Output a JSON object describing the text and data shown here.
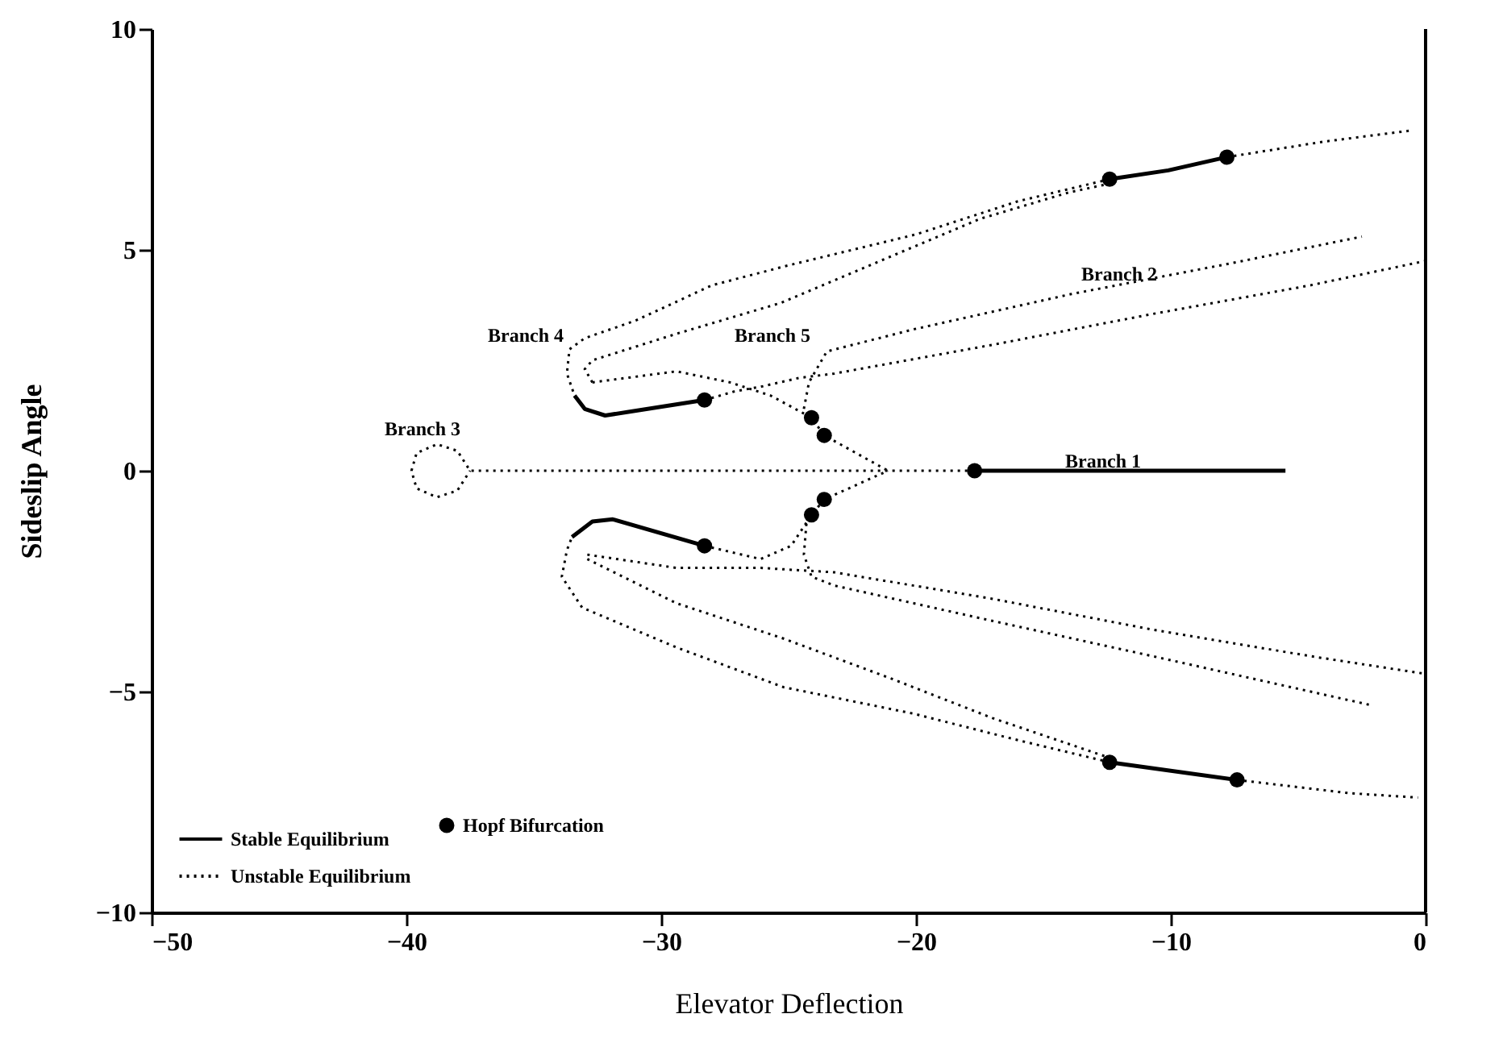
{
  "chart_data": {
    "type": "line",
    "xlabel": "Elevator Deflection",
    "ylabel": "Sideslip Angle",
    "xlim": [
      -50,
      0
    ],
    "xticks": [
      -50,
      -40,
      -30,
      -20,
      -10,
      0
    ],
    "ylim": [
      -10,
      10
    ],
    "yticks": [
      -10,
      -5,
      0,
      5,
      10
    ],
    "grid": false,
    "legend": "bottom left",
    "series": [
      {
        "name": "Stable Equilibrium",
        "line_style": "solid",
        "color": "#000000",
        "x": [
          -17.7,
          -5.5
        ],
        "values": [
          0,
          0
        ]
      },
      {
        "name": "Unstable Equilibrium",
        "line_style": "dotted",
        "color": "#000000",
        "x": [
          -17.7,
          -37.5,
          -38.0,
          -38.8,
          -39.6,
          -39.8,
          -39.6,
          -38.8,
          -38.0,
          -37.5
        ],
        "values": [
          0,
          0,
          0.45,
          0.6,
          0.4,
          0,
          -0.4,
          -0.6,
          -0.45,
          0
        ]
      },
      {
        "name": "Hopf Bifurcation",
        "type": "scatter",
        "marker": "circle",
        "color": "#000000",
        "x": [
          -17.7,
          -12.4,
          -7.8,
          -28.3,
          -28.3,
          -12.4,
          -7.4,
          -24.1,
          -23.6,
          -24.1,
          -23.6
        ],
        "values": [
          0,
          6.6,
          7.1,
          1.6,
          -1.7,
          -6.6,
          -7.0,
          1.2,
          0.8,
          -1.0,
          -0.65
        ]
      },
      {
        "line_style": "solid",
        "color": "#000000",
        "x": [
          -12.4,
          -10.1,
          -7.8
        ],
        "values": [
          6.6,
          6.8,
          7.1
        ]
      },
      {
        "line_style": "solid",
        "color": "#000000",
        "x": [
          -33.4,
          -33.0,
          -32.2,
          -28.3
        ],
        "values": [
          1.7,
          1.4,
          1.25,
          1.6
        ]
      },
      {
        "line_style": "solid",
        "color": "#000000",
        "x": [
          -33.5,
          -32.7,
          -31.9,
          -28.3
        ],
        "values": [
          -1.5,
          -1.15,
          -1.1,
          -1.7
        ]
      },
      {
        "line_style": "solid",
        "color": "#000000",
        "x": [
          -12.4,
          -7.4
        ],
        "values": [
          -6.6,
          -7.0
        ]
      },
      {
        "line_style": "dotted",
        "color": "#000000",
        "x": [
          -7.8,
          -4,
          -0.6
        ],
        "values": [
          7.1,
          7.45,
          7.7
        ]
      },
      {
        "line_style": "dotted",
        "color": "#000000",
        "x": [
          -12.4,
          -16,
          -20,
          -25,
          -28,
          -31,
          -33,
          -33.6,
          -33.7,
          -33.4
        ],
        "values": [
          6.6,
          6.1,
          5.35,
          4.65,
          4.2,
          3.4,
          3.0,
          2.75,
          2.2,
          1.7
        ]
      },
      {
        "line_style": "dotted",
        "color": "#000000",
        "x": [
          -28.3,
          -27.1,
          -26.1,
          -24.6,
          -23.2,
          -17.0,
          -10.7,
          -4.5,
          0
        ],
        "values": [
          1.6,
          1.8,
          1.9,
          2.1,
          2.2,
          2.85,
          3.55,
          4.2,
          4.75
        ]
      },
      {
        "line_style": "dotted",
        "color": "#000000",
        "x": [
          -24.4,
          -24.2,
          -23.5,
          -20.1,
          -13.9,
          -7.6,
          -2.5
        ],
        "values": [
          1.4,
          2.0,
          2.7,
          3.2,
          4.0,
          4.7,
          5.3
        ]
      },
      {
        "line_style": "dotted",
        "color": "#000000",
        "x": [
          -32.7,
          -29.4,
          -27.3,
          -25.7,
          -24.1,
          -23.6,
          -21.1
        ],
        "values": [
          2.0,
          2.25,
          2.0,
          1.7,
          1.2,
          0.8,
          0
        ]
      },
      {
        "line_style": "dotted",
        "color": "#000000",
        "x": [
          -32.7,
          -33.0,
          -32.7,
          -29.4,
          -25.3,
          -21.2,
          -17.5,
          -14,
          -12.4
        ],
        "values": [
          2.0,
          2.3,
          2.5,
          3.1,
          3.8,
          4.8,
          5.7,
          6.3,
          6.5
        ]
      },
      {
        "line_style": "dotted",
        "color": "#000000",
        "x": [
          -12.4,
          -16,
          -20.1,
          -25.2,
          -29.4,
          -33.1,
          -33.9,
          -33.7,
          -33.5
        ],
        "values": [
          -6.6,
          -6.1,
          -5.5,
          -4.9,
          -4.0,
          -3.1,
          -2.4,
          -1.8,
          -1.5
        ]
      },
      {
        "line_style": "dotted",
        "color": "#000000",
        "x": [
          -7.4,
          -3,
          -0.3
        ],
        "values": [
          -7.0,
          -7.3,
          -7.4
        ]
      },
      {
        "line_style": "dotted",
        "color": "#000000",
        "x": [
          -32.9,
          -29.4,
          -25.2,
          -21,
          -17,
          -12.4
        ],
        "values": [
          -2.0,
          -3.0,
          -3.8,
          -4.7,
          -5.6,
          -6.5
        ]
      },
      {
        "line_style": "dotted",
        "color": "#000000",
        "x": [
          -28.3,
          -26.1,
          -24.9,
          -24.1,
          -23.6,
          -21.1
        ],
        "values": [
          -1.7,
          -2.0,
          -1.7,
          -1.0,
          -0.65,
          0
        ]
      },
      {
        "line_style": "dotted",
        "color": "#000000",
        "x": [
          -32.9,
          -29.4,
          -26.1,
          -23.2,
          -17,
          -10.7,
          -4.5,
          0
        ],
        "values": [
          -1.9,
          -2.2,
          -2.2,
          -2.3,
          -2.9,
          -3.6,
          -4.2,
          -4.6
        ]
      },
      {
        "line_style": "dotted",
        "color": "#000000",
        "x": [
          -24.3,
          -24.4,
          -24.1,
          -23.2,
          -17,
          -10.7,
          -2.2
        ],
        "values": [
          -1.2,
          -1.9,
          -2.4,
          -2.6,
          -3.4,
          -4.2,
          -5.3
        ]
      }
    ],
    "annotations": [
      "Branch 1",
      "Branch 2",
      "Branch 3",
      "Branch 4",
      "Branch 5"
    ]
  }
}
